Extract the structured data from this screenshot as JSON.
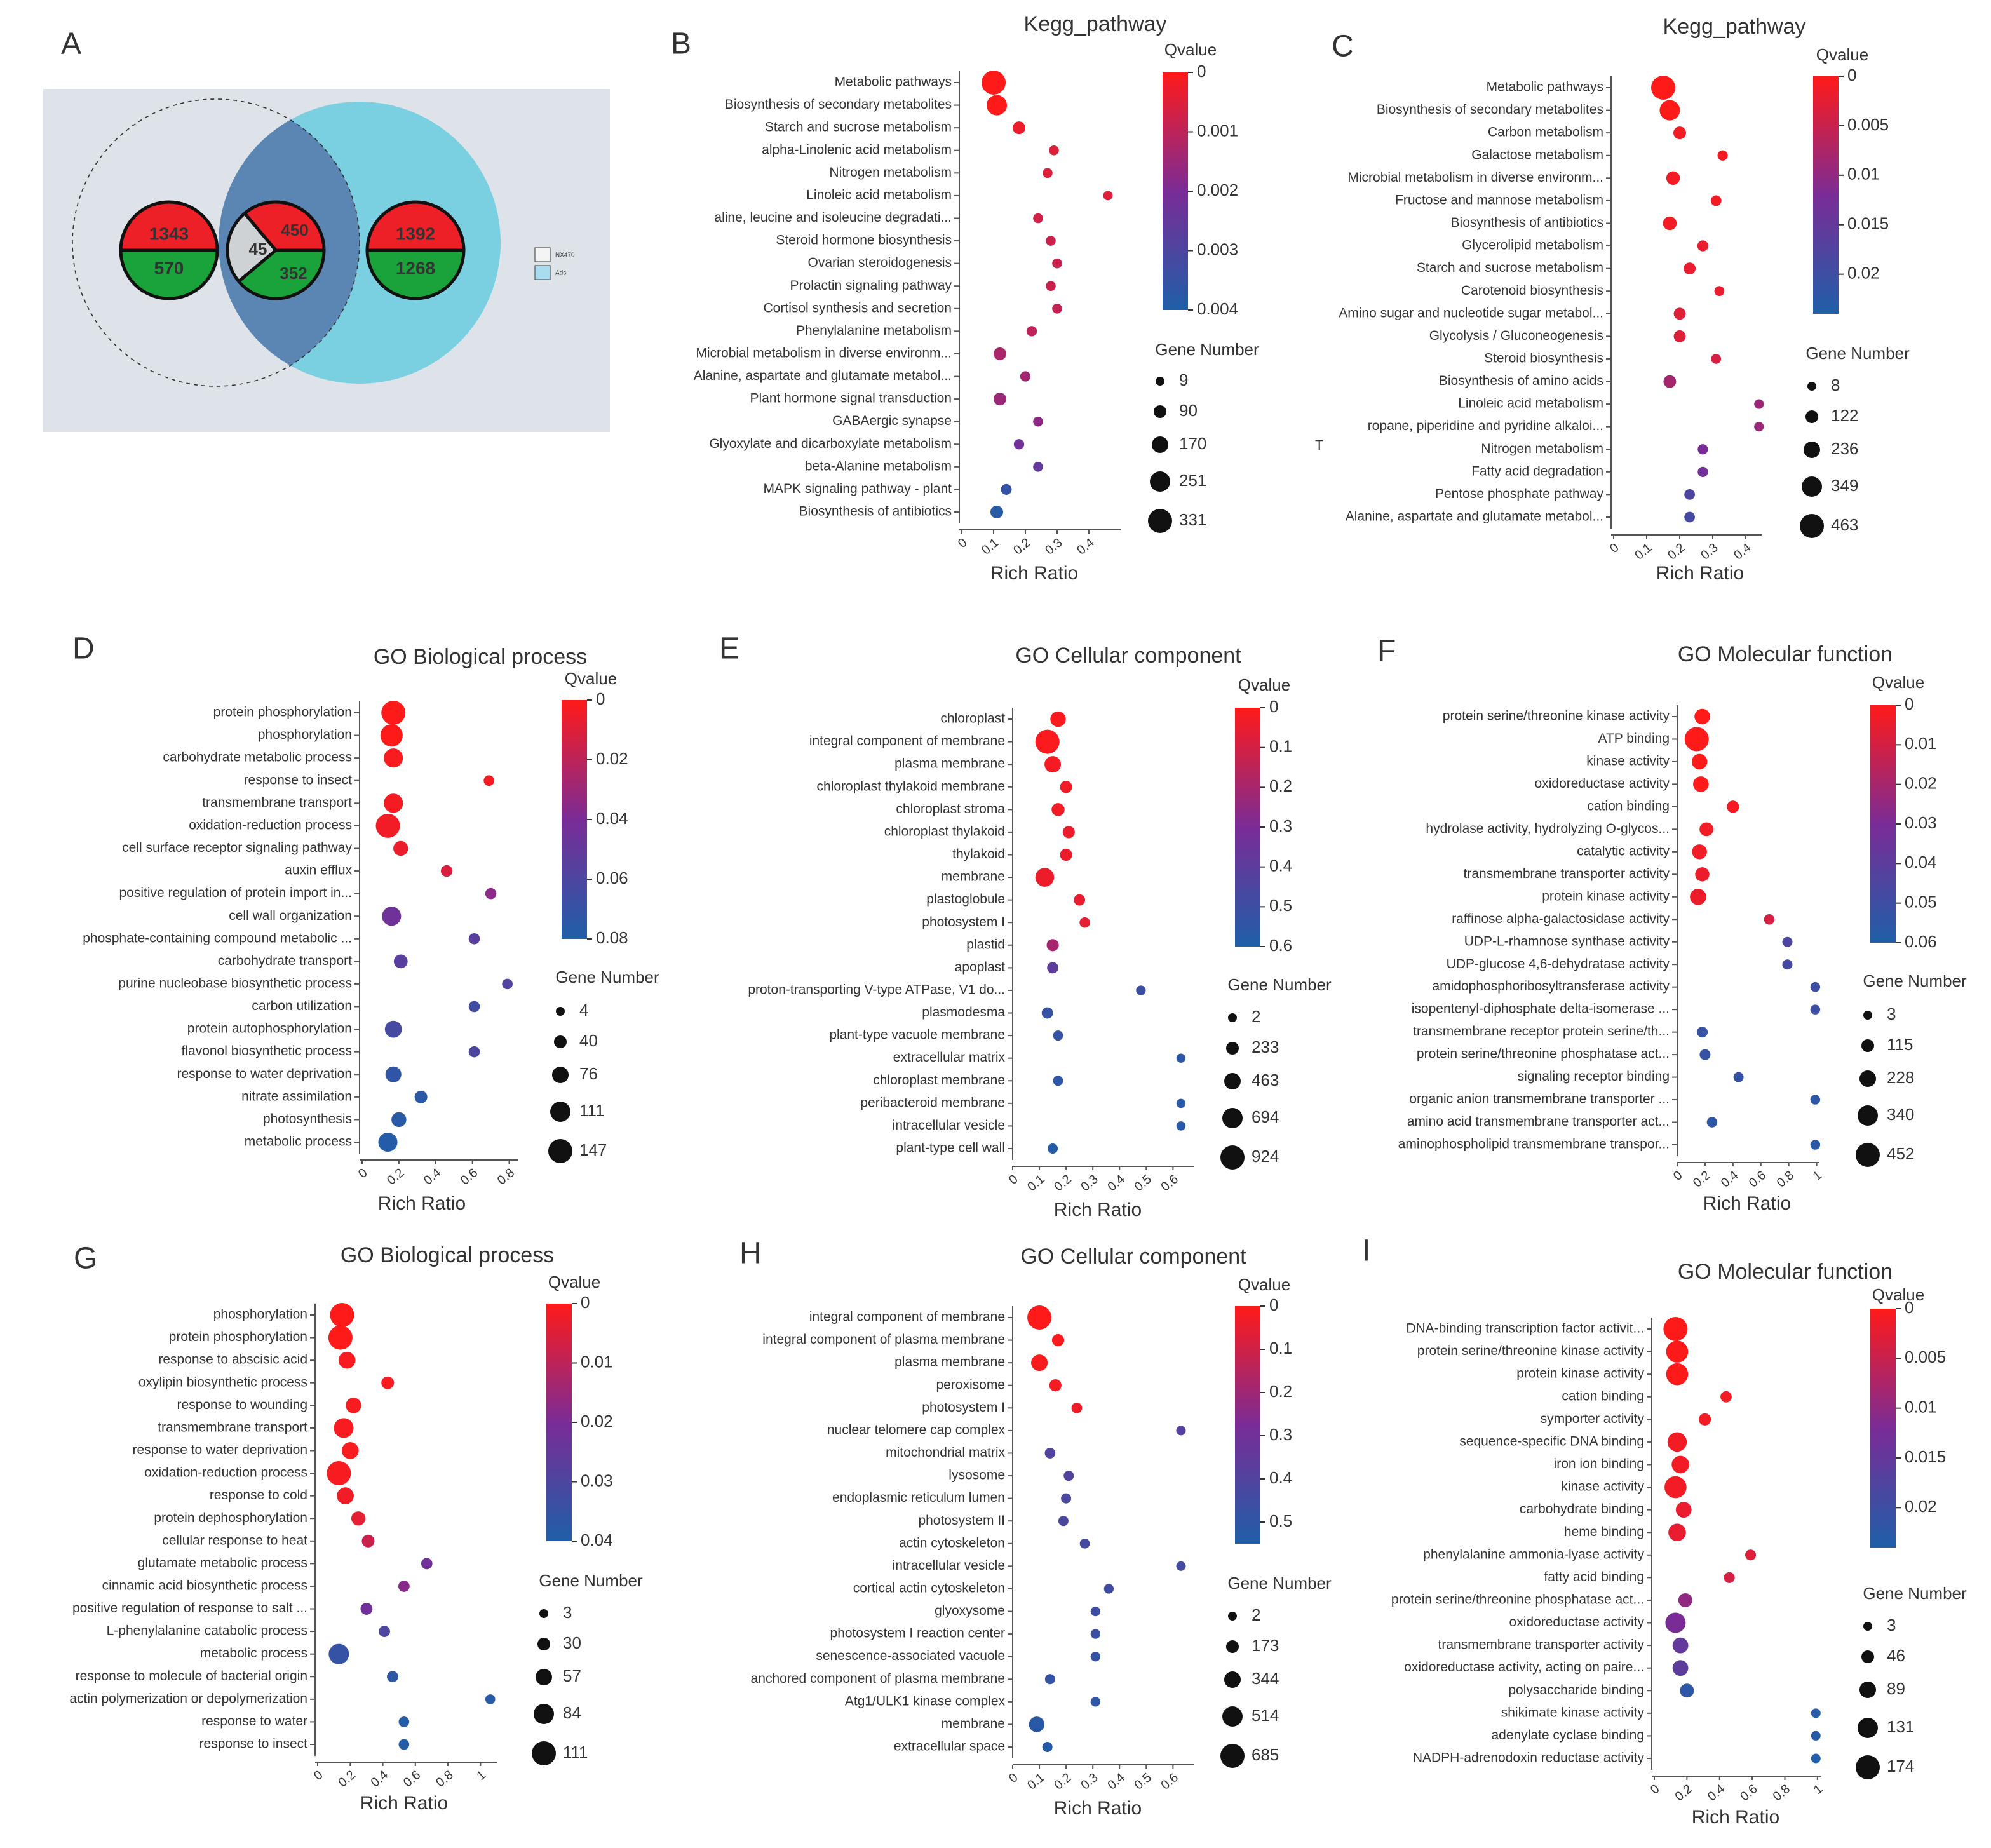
{
  "chart_data": [
    {
      "type": "venn",
      "label": "A",
      "sets": [
        "NX470",
        "Ads"
      ],
      "groups": [
        {
          "values": [
            1343,
            570
          ]
        },
        {
          "values": [
            450,
            45,
            352
          ]
        },
        {
          "values": [
            1392,
            1268
          ]
        }
      ]
    },
    {
      "type": "bubble",
      "label": "B",
      "title": "Kegg_pathway",
      "xlabel": "Rich Ratio",
      "categories": [
        "Metabolic pathways",
        "Biosynthesis of secondary metabolites",
        "Starch and sucrose metabolism",
        "alpha-Linolenic acid metabolism",
        "Nitrogen metabolism",
        "Linoleic acid metabolism",
        "aline, leucine and isoleucine degradati...",
        "Steroid hormone biosynthesis",
        "Ovarian steroidogenesis",
        "Prolactin signaling pathway",
        "Cortisol synthesis and secretion",
        "Phenylalanine metabolism",
        "Microbial metabolism in diverse environm...",
        "Alanine, aspartate and glutamate metabol...",
        "Plant hormone signal transduction",
        "GABAergic synapse",
        "Glyoxylate and dicarboxylate metabolism",
        "beta-Alanine metabolism",
        "MAPK signaling pathway - plant",
        "Biosynthesis of antibiotics"
      ],
      "values": [
        0.1,
        0.11,
        0.18,
        0.29,
        0.27,
        0.46,
        0.24,
        0.28,
        0.3,
        0.28,
        0.3,
        0.22,
        0.12,
        0.2,
        0.12,
        0.24,
        0.18,
        0.24,
        0.14,
        0.11
      ],
      "gene_numbers": [
        331,
        251,
        90,
        30,
        30,
        20,
        30,
        30,
        30,
        30,
        30,
        40,
        90,
        40,
        90,
        30,
        40,
        30,
        50,
        90
      ],
      "qvalues": [
        0,
        0,
        0.0003,
        0.0005,
        0.0005,
        0.0005,
        0.0007,
        0.0008,
        0.0008,
        0.0008,
        0.0009,
        0.001,
        0.0013,
        0.0014,
        0.0015,
        0.0017,
        0.0022,
        0.0025,
        0.0035,
        0.0038
      ],
      "xlim": [
        0,
        0.5
      ],
      "xticks": [
        0,
        0.1,
        0.2,
        0.3,
        0.4
      ],
      "colorbar_title": "Qvalue",
      "qlim": [
        0,
        0.004
      ],
      "qticks": [
        0,
        0.001,
        0.002,
        0.003,
        0.004
      ],
      "size_title": "Gene Number",
      "size_ticks": [
        9,
        90,
        170,
        251,
        331
      ],
      "colors": [
        "#ff1a1a",
        "#7a2c96",
        "#1f5fa8"
      ]
    },
    {
      "type": "bubble",
      "label": "C",
      "title": "Kegg_pathway",
      "xlabel": "Rich Ratio",
      "annotation": "T",
      "categories": [
        "Metabolic pathways",
        "Biosynthesis of secondary metabolites",
        "Carbon metabolism",
        "Galactose metabolism",
        "Microbial metabolism in diverse environm...",
        "Fructose and mannose metabolism",
        "Biosynthesis of antibiotics",
        "Glycerolipid metabolism",
        "Starch and sucrose metabolism",
        "Carotenoid biosynthesis",
        "Amino sugar and nucleotide sugar metabol...",
        "Glycolysis / Gluconeogenesis",
        "Steroid biosynthesis",
        "Biosynthesis of amino acids",
        "Linoleic acid metabolism",
        "ropane, piperidine and pyridine alkaloi...",
        "Nitrogen metabolism",
        "Fatty acid degradation",
        "Pentose phosphate pathway",
        "Alanine, aspartate and glutamate metabol..."
      ],
      "values": [
        0.15,
        0.17,
        0.2,
        0.33,
        0.18,
        0.31,
        0.17,
        0.27,
        0.23,
        0.32,
        0.2,
        0.2,
        0.31,
        0.17,
        0.44,
        0.44,
        0.27,
        0.27,
        0.23,
        0.23
      ],
      "gene_numbers": [
        463,
        349,
        122,
        50,
        150,
        60,
        150,
        70,
        100,
        40,
        100,
        100,
        40,
        120,
        30,
        30,
        50,
        50,
        60,
        60
      ],
      "qvalues": [
        0,
        0,
        0.001,
        0.001,
        0.001,
        0.001,
        0.001,
        0.002,
        0.002,
        0.002,
        0.003,
        0.003,
        0.004,
        0.008,
        0.009,
        0.009,
        0.012,
        0.013,
        0.018,
        0.019
      ],
      "xlim": [
        0,
        0.45
      ],
      "xticks": [
        0,
        0.1,
        0.2,
        0.3,
        0.4
      ],
      "colorbar_title": "Qvalue",
      "qlim": [
        0,
        0.024
      ],
      "qticks": [
        0,
        0.005,
        0.01,
        0.015,
        0.02
      ],
      "size_title": "Gene Number",
      "size_ticks": [
        8,
        122,
        236,
        349,
        463
      ],
      "colors": [
        "#ff1a1a",
        "#7a2c96",
        "#1f5fa8"
      ]
    },
    {
      "type": "bubble",
      "label": "D",
      "title": "GO Biological process",
      "xlabel": "Rich Ratio",
      "categories": [
        "protein phosphorylation",
        "phosphorylation",
        "carbohydrate metabolic process",
        "response to insect",
        "transmembrane transport",
        "oxidation-reduction process",
        "cell surface receptor signaling pathway",
        "auxin efflux",
        "positive regulation of protein import in...",
        "cell wall organization",
        "phosphate-containing compound metabolic ...",
        "carbohydrate transport",
        "purine nucleobase biosynthetic process",
        "carbon utilization",
        "protein autophosphorylation",
        "flavonol biosynthetic process",
        "response to water deprivation",
        "nitrate assimilation",
        "photosynthesis",
        "metabolic process"
      ],
      "values": [
        0.17,
        0.16,
        0.17,
        0.69,
        0.17,
        0.14,
        0.21,
        0.46,
        0.7,
        0.16,
        0.61,
        0.21,
        0.79,
        0.61,
        0.17,
        0.61,
        0.17,
        0.32,
        0.2,
        0.14
      ],
      "gene_numbers": [
        147,
        130,
        100,
        20,
        100,
        147,
        60,
        30,
        25,
        100,
        25,
        50,
        20,
        25,
        80,
        25,
        70,
        40,
        60,
        100
      ],
      "qvalues": [
        0,
        0,
        0.002,
        0.003,
        0.003,
        0.004,
        0.006,
        0.012,
        0.035,
        0.045,
        0.055,
        0.055,
        0.058,
        0.065,
        0.063,
        0.06,
        0.072,
        0.075,
        0.075,
        0.078
      ],
      "xlim": [
        0,
        0.85
      ],
      "xticks": [
        0,
        0.2,
        0.4,
        0.6,
        0.8
      ],
      "colorbar_title": "Qvalue",
      "qlim": [
        0,
        0.08
      ],
      "qticks": [
        0,
        0.02,
        0.04,
        0.06,
        0.08
      ],
      "size_title": "Gene Number",
      "size_ticks": [
        4,
        40,
        76,
        111,
        147
      ],
      "colors": [
        "#ff1a1a",
        "#7a2c96",
        "#1f5fa8"
      ]
    },
    {
      "type": "bubble",
      "label": "E",
      "title": "GO Cellular component",
      "xlabel": "Rich Ratio",
      "categories": [
        "chloroplast",
        "integral component of membrane",
        "plasma membrane",
        "chloroplast thylakoid membrane",
        "chloroplast stroma",
        "chloroplast thylakoid",
        "thylakoid",
        "membrane",
        "plastoglobule",
        "photosystem I",
        "plastid",
        "apoplast",
        "proton-transporting V-type ATPase, V1 do...",
        "plasmodesma",
        "plant-type vacuole membrane",
        "extracellular matrix",
        "chloroplast membrane",
        "peribacteroid membrane",
        "intracellular vesicle",
        "plant-type cell wall"
      ],
      "values": [
        0.17,
        0.13,
        0.15,
        0.2,
        0.17,
        0.21,
        0.2,
        0.12,
        0.25,
        0.27,
        0.15,
        0.15,
        0.48,
        0.13,
        0.17,
        0.63,
        0.17,
        0.63,
        0.63,
        0.15
      ],
      "gene_numbers": [
        400,
        924,
        463,
        200,
        250,
        200,
        200,
        600,
        150,
        100,
        200,
        150,
        50,
        150,
        80,
        20,
        80,
        20,
        20,
        80
      ],
      "qvalues": [
        0.01,
        0.01,
        0.02,
        0.03,
        0.03,
        0.04,
        0.04,
        0.04,
        0.05,
        0.06,
        0.2,
        0.4,
        0.5,
        0.52,
        0.53,
        0.55,
        0.55,
        0.56,
        0.56,
        0.58
      ],
      "xlim": [
        0,
        0.68
      ],
      "xticks": [
        0,
        0.1,
        0.2,
        0.3,
        0.4,
        0.5,
        0.6
      ],
      "colorbar_title": "Qvalue",
      "qlim": [
        0,
        0.6
      ],
      "qticks": [
        0,
        0.1,
        0.2,
        0.3,
        0.4,
        0.5,
        0.6
      ],
      "size_title": "Gene Number",
      "size_ticks": [
        2,
        233,
        463,
        694,
        924
      ],
      "colors": [
        "#ff1a1a",
        "#7a2c96",
        "#1f5fa8"
      ]
    },
    {
      "type": "bubble",
      "label": "F",
      "title": "GO Molecular function",
      "xlabel": "Rich Ratio",
      "categories": [
        "protein serine/threonine kinase activity",
        "ATP binding",
        "kinase activity",
        "oxidoreductase activity",
        "cation binding",
        "hydrolase activity, hydrolyzing O-glycos...",
        "catalytic activity",
        "transmembrane transporter activity",
        "protein kinase activity",
        "raffinose alpha-galactosidase activity",
        "UDP-L-rhamnose synthase activity",
        "UDP-glucose 4,6-dehydratase activity",
        "amidophosphoribosyltransferase activity",
        "isopentenyl-diphosphate delta-isomerase ...",
        "transmembrane receptor protein serine/th...",
        "protein serine/threonine phosphatase act...",
        "signaling receptor binding",
        "organic anion transmembrane transporter ...",
        "amino acid transmembrane transporter act...",
        "aminophospholipid transmembrane transpor..."
      ],
      "values": [
        0.18,
        0.14,
        0.16,
        0.17,
        0.4,
        0.21,
        0.16,
        0.18,
        0.15,
        0.66,
        0.79,
        0.79,
        0.99,
        0.99,
        0.18,
        0.2,
        0.44,
        0.99,
        0.25,
        0.99
      ],
      "gene_numbers": [
        200,
        452,
        200,
        200,
        100,
        150,
        180,
        160,
        220,
        50,
        40,
        40,
        30,
        30,
        60,
        60,
        40,
        30,
        50,
        30
      ],
      "qvalues": [
        0,
        0,
        0,
        0,
        0.002,
        0.003,
        0.003,
        0.004,
        0.004,
        0.01,
        0.045,
        0.047,
        0.05,
        0.05,
        0.052,
        0.052,
        0.053,
        0.055,
        0.055,
        0.056
      ],
      "xlim": [
        0,
        1.02
      ],
      "xticks": [
        0,
        0.2,
        0.4,
        0.6,
        0.8,
        1
      ],
      "colorbar_title": "Qvalue",
      "qlim": [
        0,
        0.06
      ],
      "qticks": [
        0,
        0.01,
        0.02,
        0.03,
        0.04,
        0.05,
        0.06
      ],
      "size_title": "Gene Number",
      "size_ticks": [
        3,
        115,
        228,
        340,
        452
      ],
      "colors": [
        "#ff1a1a",
        "#7a2c96",
        "#1f5fa8"
      ]
    },
    {
      "type": "bubble",
      "label": "G",
      "title": "GO Biological process",
      "xlabel": "Rich Ratio",
      "categories": [
        "phosphorylation",
        "protein phosphorylation",
        "response to abscisic acid",
        "oxylipin biosynthetic process",
        "response to wounding",
        "transmembrane transport",
        "response to water deprivation",
        "oxidation-reduction process",
        "response to cold",
        "protein dephosphorylation",
        "cellular response to heat",
        "glutamate metabolic process",
        "cinnamic acid biosynthetic process",
        "positive regulation of response to salt ...",
        "L-phenylalanine catabolic process",
        "metabolic process",
        "response to molecule of bacterial origin",
        "actin polymerization or depolymerization",
        "response to water",
        "response to insect"
      ],
      "values": [
        0.15,
        0.14,
        0.18,
        0.43,
        0.22,
        0.16,
        0.2,
        0.13,
        0.17,
        0.25,
        0.31,
        0.67,
        0.53,
        0.3,
        0.41,
        0.13,
        0.46,
        1.06,
        0.53,
        0.53
      ],
      "gene_numbers": [
        111,
        111,
        60,
        30,
        50,
        80,
        60,
        111,
        60,
        40,
        30,
        20,
        20,
        25,
        20,
        84,
        20,
        10,
        15,
        15
      ],
      "qvalues": [
        0,
        0,
        0.001,
        0.001,
        0.001,
        0.001,
        0.001,
        0.001,
        0.002,
        0.004,
        0.008,
        0.022,
        0.018,
        0.022,
        0.03,
        0.035,
        0.037,
        0.038,
        0.039,
        0.039
      ],
      "xlim": [
        0,
        1.1
      ],
      "xticks": [
        0,
        0.2,
        0.4,
        0.6,
        0.8,
        1
      ],
      "colorbar_title": "Qvalue",
      "qlim": [
        0,
        0.04
      ],
      "qticks": [
        0,
        0.01,
        0.02,
        0.03,
        0.04
      ],
      "size_title": "Gene Number",
      "size_ticks": [
        3,
        30,
        57,
        84,
        111
      ],
      "colors": [
        "#ff1a1a",
        "#7a2c96",
        "#1f5fa8"
      ]
    },
    {
      "type": "bubble",
      "label": "H",
      "title": "GO Cellular component",
      "xlabel": "Rich Ratio",
      "categories": [
        "integral component of membrane",
        "integral component of plasma membrane",
        "plasma membrane",
        "peroxisome",
        "photosystem I",
        "nuclear telomere cap complex",
        "mitochondrial matrix",
        "lysosome",
        "endoplasmic reticulum lumen",
        "photosystem II",
        "actin cytoskeleton",
        "intracellular vesicle",
        "cortical actin cytoskeleton",
        "glyoxysome",
        "photosystem I reaction center",
        "senescence-associated vacuole",
        "anchored component of plasma membrane",
        "Atg1/ULK1 kinase complex",
        "membrane",
        "extracellular space"
      ],
      "values": [
        0.1,
        0.17,
        0.1,
        0.16,
        0.24,
        0.63,
        0.14,
        0.21,
        0.2,
        0.19,
        0.27,
        0.63,
        0.36,
        0.31,
        0.31,
        0.31,
        0.14,
        0.31,
        0.09,
        0.13
      ],
      "gene_numbers": [
        685,
        150,
        344,
        150,
        80,
        30,
        80,
        60,
        60,
        60,
        50,
        30,
        40,
        40,
        40,
        40,
        60,
        40,
        300,
        60
      ],
      "qvalues": [
        0,
        0.01,
        0.01,
        0.02,
        0.03,
        0.38,
        0.4,
        0.4,
        0.42,
        0.42,
        0.43,
        0.44,
        0.45,
        0.46,
        0.47,
        0.48,
        0.49,
        0.5,
        0.52,
        0.53
      ],
      "xlim": [
        0,
        0.68
      ],
      "xticks": [
        0,
        0.1,
        0.2,
        0.3,
        0.4,
        0.5,
        0.6
      ],
      "colorbar_title": "Qvalue",
      "qlim": [
        0,
        0.55
      ],
      "qticks": [
        0,
        0.1,
        0.2,
        0.3,
        0.4,
        0.5
      ],
      "size_title": "Gene Number",
      "size_ticks": [
        2,
        173,
        344,
        514,
        685
      ],
      "colors": [
        "#ff1a1a",
        "#7a2c96",
        "#1f5fa8"
      ]
    },
    {
      "type": "bubble",
      "label": "I",
      "title": "GO Molecular function",
      "xlabel": "Rich Ratio",
      "categories": [
        "DNA-binding transcription factor activit...",
        "protein serine/threonine kinase activity",
        "protein kinase activity",
        "cation binding",
        "symporter activity",
        "sequence-specific DNA binding",
        "iron ion binding",
        "kinase activity",
        "carbohydrate binding",
        "heme binding",
        "phenylalanine ammonia-lyase activity",
        "fatty acid binding",
        "protein serine/threonine phosphatase act...",
        "oxidoreductase activity",
        "transmembrane transporter activity",
        "oxidoreductase activity, acting on paire...",
        "polysaccharide binding",
        "shikimate kinase activity",
        "adenylate cyclase binding",
        "NADPH-adrenodoxin reductase activity"
      ],
      "values": [
        0.13,
        0.14,
        0.14,
        0.44,
        0.31,
        0.14,
        0.16,
        0.13,
        0.18,
        0.14,
        0.59,
        0.46,
        0.19,
        0.13,
        0.16,
        0.16,
        0.2,
        0.99,
        0.99,
        0.99
      ],
      "gene_numbers": [
        174,
        150,
        150,
        30,
        40,
        120,
        100,
        150,
        80,
        100,
        25,
        25,
        60,
        131,
        80,
        80,
        60,
        10,
        10,
        10
      ],
      "qvalues": [
        0,
        0,
        0,
        0.001,
        0.001,
        0.001,
        0.001,
        0.001,
        0.002,
        0.002,
        0.003,
        0.004,
        0.01,
        0.012,
        0.015,
        0.016,
        0.022,
        0.023,
        0.023,
        0.024
      ],
      "xlim": [
        0,
        1.02
      ],
      "xticks": [
        0,
        0.2,
        0.4,
        0.6,
        0.8,
        1
      ],
      "colorbar_title": "Qvalue",
      "qlim": [
        0,
        0.024
      ],
      "qticks": [
        0,
        0.005,
        0.01,
        0.015,
        0.02
      ],
      "size_title": "Gene Number",
      "size_ticks": [
        3,
        46,
        89,
        131,
        174
      ],
      "colors": [
        "#ff1a1a",
        "#7a2c96",
        "#1f5fa8"
      ]
    }
  ]
}
